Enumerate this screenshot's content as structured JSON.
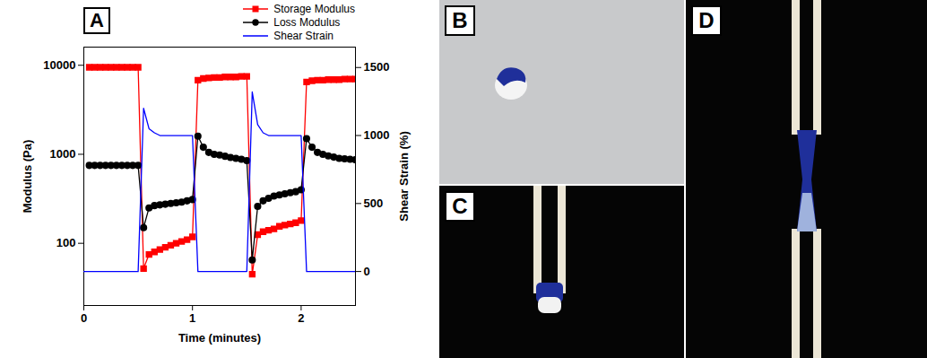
{
  "chart_data": {
    "type": "line",
    "annotations": [
      "A"
    ],
    "x_label": "Time (minutes)",
    "y_label": "Modulus (Pa)",
    "y2_label": "Shear Strain (%)",
    "log": "y",
    "grid": false,
    "legend": "upper right",
    "xlim": [
      0,
      2.5
    ],
    "xticks": [
      0,
      1,
      2
    ],
    "ylim": [
      20,
      16000
    ],
    "yticks": [
      100,
      1000,
      10000
    ],
    "y2lim": [
      -250,
      1650
    ],
    "y2ticks": [
      0,
      500,
      1000,
      1500
    ],
    "x": [
      0,
      0.05,
      0.1,
      0.15,
      0.2,
      0.25,
      0.3,
      0.35,
      0.4,
      0.45,
      0.5,
      0.55,
      0.6,
      0.65,
      0.7,
      0.75,
      0.8,
      0.85,
      0.9,
      0.95,
      1,
      1.05,
      1.1,
      1.15,
      1.2,
      1.25,
      1.3,
      1.35,
      1.4,
      1.45,
      1.5,
      1.55,
      1.6,
      1.65,
      1.7,
      1.75,
      1.8,
      1.85,
      1.9,
      1.95,
      2,
      2.05,
      2.1,
      2.15,
      2.2,
      2.25,
      2.3,
      2.35,
      2.4,
      2.45,
      2.5
    ],
    "series": [
      {
        "name": "Storage Modulus",
        "color": "#ff0000",
        "marker": "square",
        "line_style": "solid",
        "values": [
          null,
          9500,
          9500,
          9500,
          9500,
          9500,
          9500,
          9500,
          9500,
          9500,
          9500,
          52,
          75,
          80,
          85,
          90,
          95,
          100,
          105,
          110,
          118,
          6800,
          7100,
          7200,
          7300,
          7300,
          7400,
          7400,
          7400,
          7500,
          7500,
          45,
          125,
          135,
          140,
          145,
          155,
          160,
          165,
          170,
          180,
          6500,
          6700,
          6800,
          6800,
          6900,
          6900,
          6900,
          7000,
          7000,
          7000
        ]
      },
      {
        "name": "Loss Modulus",
        "color": "#000000",
        "marker": "circle",
        "line_style": "solid",
        "values": [
          null,
          750,
          750,
          750,
          750,
          750,
          750,
          750,
          750,
          750,
          750,
          150,
          250,
          265,
          270,
          275,
          280,
          285,
          290,
          300,
          310,
          1600,
          1200,
          1050,
          1000,
          980,
          950,
          920,
          900,
          880,
          850,
          65,
          260,
          300,
          320,
          340,
          350,
          360,
          370,
          380,
          400,
          1500,
          1200,
          1050,
          1000,
          960,
          930,
          900,
          890,
          880,
          870
        ]
      },
      {
        "name": "Shear Strain",
        "color": "#0000ff",
        "marker": "none",
        "line_style": "solid",
        "axis": "y2",
        "values": [
          0,
          0,
          0,
          0,
          0,
          0,
          0,
          0,
          0,
          0,
          0,
          1200,
          1050,
          1020,
          1000,
          1000,
          1000,
          1000,
          1000,
          1000,
          1000,
          0,
          0,
          0,
          0,
          0,
          0,
          0,
          0,
          0,
          0,
          1320,
          1080,
          1020,
          1000,
          1000,
          1000,
          1000,
          1000,
          1000,
          1000,
          0,
          0,
          0,
          0,
          0,
          0,
          0,
          0,
          0,
          0
        ]
      }
    ]
  },
  "photo_panels": [
    "B",
    "C",
    "D"
  ]
}
